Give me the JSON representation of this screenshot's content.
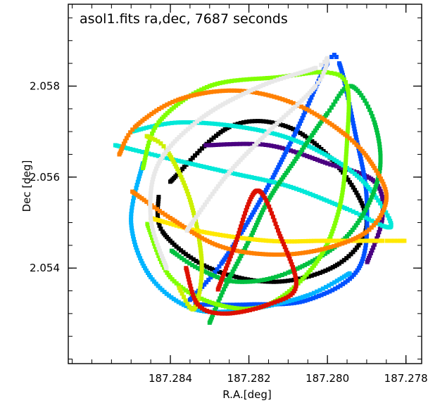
{
  "chart_data": {
    "type": "scatter",
    "title": "asol1.fits ra,dec, 7687 seconds",
    "xlabel": "R.A.[deg]",
    "ylabel": "Dec  [deg]",
    "xlim": [
      187.2866,
      187.2776
    ],
    "ylim": [
      2.0519,
      2.0598
    ],
    "x_reversed": true,
    "grid": false,
    "legend": "none",
    "x_ticks": [
      187.284,
      187.282,
      187.28,
      187.278
    ],
    "x_tick_labels": [
      "187.284",
      "187.282",
      "187.280",
      "187.278"
    ],
    "y_ticks": [
      2.054,
      2.056,
      2.058
    ],
    "y_tick_labels": [
      "2.054",
      "2.056",
      "2.058"
    ],
    "series": [
      {
        "color": "#000000",
        "points": [
          [
            187.284,
            2.0559
          ],
          [
            187.2825,
            2.0571
          ],
          [
            187.281,
            2.0571
          ],
          [
            187.2797,
            2.0562
          ],
          [
            187.279,
            2.055
          ],
          [
            187.2797,
            2.0541
          ],
          [
            187.2813,
            2.0537
          ],
          [
            187.283,
            2.054
          ],
          [
            187.2842,
            2.0548
          ],
          [
            187.2843,
            2.0556
          ]
        ]
      },
      {
        "color": "#4a0080",
        "points": [
          [
            187.2831,
            2.0567
          ],
          [
            187.2815,
            2.0567
          ],
          [
            187.28,
            2.0563
          ],
          [
            187.2788,
            2.0559
          ],
          [
            187.2786,
            2.0551
          ],
          [
            187.279,
            2.0541
          ]
        ]
      },
      {
        "color": "#0050ff",
        "points": [
          [
            187.2835,
            2.0533
          ],
          [
            187.2827,
            2.0541
          ],
          [
            187.2817,
            2.0555
          ],
          [
            187.2808,
            2.057
          ],
          [
            187.28,
            2.0585
          ],
          [
            187.2797,
            2.0585
          ],
          [
            187.2793,
            2.057
          ],
          [
            187.279,
            2.0555
          ],
          [
            187.2792,
            2.054
          ],
          [
            187.2805,
            2.0533
          ],
          [
            187.282,
            2.0532
          ],
          [
            187.2834,
            2.0532
          ]
        ]
      },
      {
        "color": "#00b4ff",
        "points": [
          [
            187.2847,
            2.0563
          ],
          [
            187.285,
            2.055
          ],
          [
            187.2845,
            2.0538
          ],
          [
            187.2834,
            2.0531
          ],
          [
            187.282,
            2.0531
          ],
          [
            187.2805,
            2.0534
          ],
          [
            187.2794,
            2.0539
          ]
        ]
      },
      {
        "color": "#00e8d8",
        "points": [
          [
            187.2854,
            2.0567
          ],
          [
            187.284,
            2.0564
          ],
          [
            187.2825,
            2.0561
          ],
          [
            187.281,
            2.0558
          ],
          [
            187.2795,
            2.0553
          ],
          [
            187.2784,
            2.0549
          ],
          [
            187.2788,
            2.0556
          ],
          [
            187.2795,
            2.0562
          ],
          [
            187.2808,
            2.0568
          ],
          [
            187.2822,
            2.0571
          ],
          [
            187.2838,
            2.0572
          ],
          [
            187.285,
            2.057
          ]
        ]
      },
      {
        "color": "#00c040",
        "points": [
          [
            187.283,
            2.0528
          ],
          [
            187.2826,
            2.0536
          ],
          [
            187.282,
            2.0546
          ],
          [
            187.2815,
            2.0555
          ],
          [
            187.2808,
            2.0564
          ],
          [
            187.28,
            2.0574
          ],
          [
            187.2794,
            2.058
          ],
          [
            187.2788,
            2.0572
          ],
          [
            187.2787,
            2.056
          ],
          [
            187.2795,
            2.0547
          ],
          [
            187.281,
            2.0539
          ],
          [
            187.2823,
            2.0537
          ],
          [
            187.2833,
            2.054
          ],
          [
            187.284,
            2.0544
          ]
        ]
      },
      {
        "color": "#80ff00",
        "points": [
          [
            187.2847,
            2.0562
          ],
          [
            187.2843,
            2.0572
          ],
          [
            187.283,
            2.058
          ],
          [
            187.2812,
            2.0582
          ],
          [
            187.28,
            2.0583
          ],
          [
            187.2795,
            2.058
          ],
          [
            187.2795,
            2.0568
          ],
          [
            187.2797,
            2.0553
          ],
          [
            187.2803,
            2.0541
          ],
          [
            187.2815,
            2.0532
          ],
          [
            187.2828,
            2.0532
          ],
          [
            187.284,
            2.0538
          ],
          [
            187.2846,
            2.055
          ]
        ]
      },
      {
        "color": "#ccf000",
        "points": [
          [
            187.2846,
            2.0569
          ],
          [
            187.2841,
            2.0566
          ],
          [
            187.2835,
            2.0555
          ],
          [
            187.2832,
            2.0541
          ],
          [
            187.2834,
            2.0531
          ],
          [
            187.2838,
            2.0536
          ]
        ]
      },
      {
        "color": "#ffe800",
        "points": [
          [
            187.2845,
            2.0551
          ],
          [
            187.2832,
            2.0548
          ],
          [
            187.2815,
            2.0546
          ],
          [
            187.28,
            2.0546
          ],
          [
            187.2786,
            2.0546
          ],
          [
            187.278,
            2.0546
          ]
        ]
      },
      {
        "color": "#ff8000",
        "points": [
          [
            187.2853,
            2.0565
          ],
          [
            187.2849,
            2.0571
          ],
          [
            187.2838,
            2.0577
          ],
          [
            187.2823,
            2.0579
          ],
          [
            187.2808,
            2.0576
          ],
          [
            187.2795,
            2.0569
          ],
          [
            187.2788,
            2.0562
          ],
          [
            187.2785,
            2.0555
          ],
          [
            187.279,
            2.0548
          ],
          [
            187.2802,
            2.0544
          ],
          [
            187.2815,
            2.0543
          ],
          [
            187.2828,
            2.0545
          ],
          [
            187.284,
            2.0551
          ],
          [
            187.285,
            2.0557
          ]
        ]
      },
      {
        "color": "#dd1000",
        "points": [
          [
            187.2836,
            2.054
          ],
          [
            187.2833,
            2.0532
          ],
          [
            187.2826,
            2.053
          ],
          [
            187.2815,
            2.0532
          ],
          [
            187.2808,
            2.0536
          ],
          [
            187.2812,
            2.0547
          ],
          [
            187.2818,
            2.0557
          ],
          [
            187.2824,
            2.0544
          ],
          [
            187.2828,
            2.0535
          ]
        ]
      },
      {
        "color": "#e8e8e8",
        "points": [
          [
            187.2841,
            2.054
          ],
          [
            187.2845,
            2.0551
          ],
          [
            187.2843,
            2.0563
          ],
          [
            187.2832,
            2.0573
          ],
          [
            187.2817,
            2.058
          ],
          [
            187.2803,
            2.0584
          ],
          [
            187.28,
            2.0586
          ],
          [
            187.2803,
            2.058
          ],
          [
            187.2815,
            2.057
          ],
          [
            187.2826,
            2.056
          ],
          [
            187.2836,
            2.0548
          ]
        ]
      }
    ]
  }
}
